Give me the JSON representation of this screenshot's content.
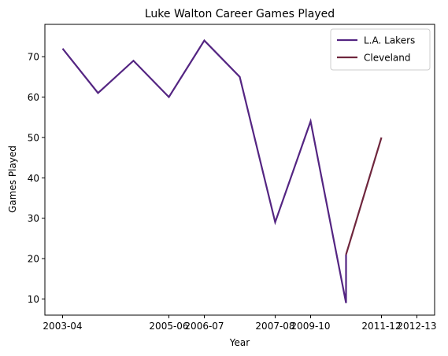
{
  "chart_data": {
    "type": "line",
    "title": "Luke Walton Career Games Played",
    "xlabel": "Year",
    "ylabel": "Games Played",
    "x_ticks": [
      "2003-04",
      "2005-06",
      "2006-07",
      "2007-08",
      "2009-10",
      "2011-12",
      "2012-13"
    ],
    "x_tick_positions": [
      0,
      3,
      4,
      6,
      7,
      9,
      10
    ],
    "x_range": [
      -0.5,
      10.5
    ],
    "yticks": [
      10,
      20,
      30,
      40,
      50,
      60,
      70
    ],
    "ylim": [
      6,
      78
    ],
    "grid": false,
    "legend_position": "top-right",
    "series": [
      {
        "name": "L.A. Lakers",
        "color": "#542582",
        "points": [
          [
            0,
            72
          ],
          [
            1,
            61
          ],
          [
            2,
            69
          ],
          [
            3,
            60
          ],
          [
            4,
            74
          ],
          [
            5,
            65
          ],
          [
            6,
            29
          ],
          [
            7,
            54
          ],
          [
            8,
            9
          ],
          [
            8,
            21
          ]
        ]
      },
      {
        "name": "Cleveland",
        "color": "#6f263d",
        "points": [
          [
            8,
            21
          ],
          [
            9,
            50
          ]
        ]
      }
    ]
  }
}
